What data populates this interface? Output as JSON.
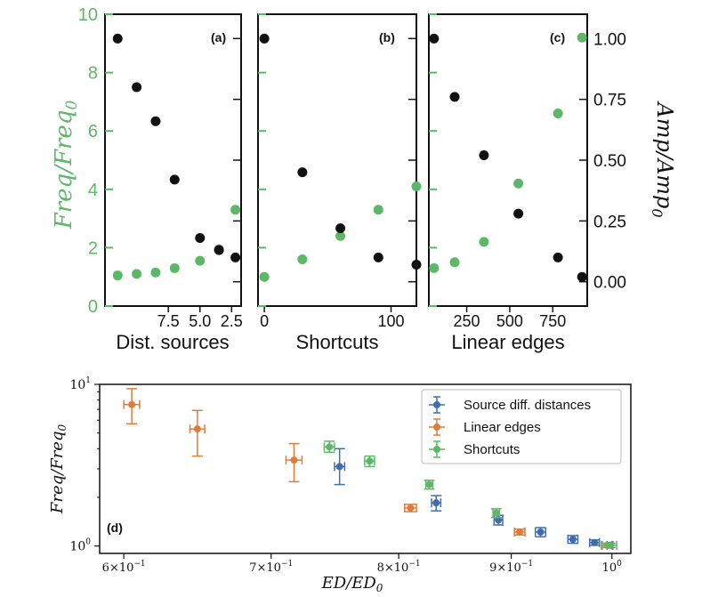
{
  "chart_data": [
    {
      "id": "a",
      "panel_label": "(a)",
      "type": "scatter",
      "xlabel": "Dist. sources",
      "xlim_reversed": [
        12.5,
        1.75
      ],
      "xticks": [
        7.5,
        5.0,
        2.5
      ],
      "xtick_labels": [
        "7.5",
        "5.0",
        "2.5"
      ],
      "ylabel_left": "Freq/Freq0",
      "ylim_left": [
        0,
        10
      ],
      "yticks_left": [
        0,
        2,
        4,
        6,
        8,
        10
      ],
      "ylim_right": [
        -0.1,
        1.1
      ],
      "series": [
        {
          "name": "Freq/Freq0",
          "axis": "left",
          "color": "#5cb867",
          "x": [
            11.5,
            10.0,
            8.5,
            7.0,
            5.0,
            3.5,
            2.2
          ],
          "y": [
            1.05,
            1.1,
            1.15,
            1.3,
            1.55,
            1.95,
            3.3
          ]
        },
        {
          "name": "Amp/Amp0",
          "axis": "right",
          "color": "#111111",
          "x": [
            11.5,
            10.0,
            8.5,
            7.0,
            5.0,
            3.5,
            2.2
          ],
          "y": [
            1.0,
            0.8,
            0.66,
            0.42,
            0.18,
            0.13,
            0.1
          ]
        }
      ]
    },
    {
      "id": "b",
      "panel_label": "(b)",
      "type": "scatter",
      "xlabel": "Shortcuts",
      "xlim": [
        -5,
        120
      ],
      "xticks": [
        0,
        100
      ],
      "xtick_labels": [
        "0",
        "100"
      ],
      "ylim_left": [
        0,
        10
      ],
      "ylim_right": [
        -0.1,
        1.1
      ],
      "series": [
        {
          "name": "Freq/Freq0",
          "axis": "left",
          "color": "#5cb867",
          "x": [
            0,
            30,
            60,
            90,
            120
          ],
          "y": [
            1.0,
            1.6,
            2.4,
            3.3,
            4.1
          ]
        },
        {
          "name": "Amp/Amp0",
          "axis": "right",
          "color": "#111111",
          "x": [
            0,
            30,
            60,
            90,
            120
          ],
          "y": [
            1.0,
            0.45,
            0.22,
            0.1,
            0.07
          ]
        }
      ]
    },
    {
      "id": "c",
      "panel_label": "(c)",
      "type": "scatter",
      "xlabel": "Linear edges",
      "xlim": [
        30,
        950
      ],
      "xticks": [
        250,
        500,
        750
      ],
      "xtick_labels": [
        "250",
        "500",
        "750"
      ],
      "ylabel_right": "Amp/Amp0",
      "ylim_left": [
        0,
        10
      ],
      "ylim_right": [
        -0.1,
        1.1
      ],
      "yticks_right": [
        0.0,
        0.25,
        0.5,
        0.75,
        1.0
      ],
      "ytick_labels_right": [
        "0.00",
        "0.25",
        "0.50",
        "0.75",
        "1.00"
      ],
      "series": [
        {
          "name": "Freq/Freq0",
          "axis": "left",
          "color": "#5cb867",
          "x": [
            60,
            180,
            350,
            550,
            780,
            920
          ],
          "y": [
            1.3,
            1.5,
            2.2,
            4.2,
            6.6,
            9.2
          ]
        },
        {
          "name": "Amp/Amp0",
          "axis": "right",
          "color": "#111111",
          "x": [
            60,
            180,
            350,
            550,
            780,
            920
          ],
          "y": [
            1.0,
            0.76,
            0.52,
            0.28,
            0.1,
            0.02
          ]
        }
      ]
    },
    {
      "id": "d",
      "panel_label": "(d)",
      "type": "scatter",
      "xscale": "log",
      "yscale": "log",
      "xlabel": "ED/ED0",
      "ylabel": "Freq/Freq0",
      "xlim": [
        0.585,
        1.02
      ],
      "ylim": [
        0.9,
        10
      ],
      "xtick_values": [
        0.6,
        0.7,
        0.8,
        0.9,
        1.0
      ],
      "xtick_labels": [
        {
          "base": "6×10",
          "exp": "−1"
        },
        {
          "base": "7×10",
          "exp": "−1"
        },
        {
          "base": "8×10",
          "exp": "−1"
        },
        {
          "base": "9×10",
          "exp": "−1"
        },
        {
          "base": "10",
          "exp": "0"
        }
      ],
      "ytick_values": [
        1,
        10
      ],
      "ytick_labels": [
        {
          "base": "10",
          "exp": "0"
        },
        {
          "base": "10",
          "exp": "1"
        }
      ],
      "legend_position": "top-right",
      "series": [
        {
          "name": "Source diff. distances",
          "color": "#3f6cb0",
          "points": [
            {
              "x": 0.752,
              "y": 3.1,
              "xerr": 0.004,
              "ylo": 2.4,
              "yhi": 4.0
            },
            {
              "x": 0.832,
              "y": 1.85,
              "xerr": 0.004,
              "ylo": 1.65,
              "yhi": 2.05
            },
            {
              "x": 0.888,
              "y": 1.45,
              "xerr": 0.004,
              "ylo": 1.35,
              "yhi": 1.55
            },
            {
              "x": 0.928,
              "y": 1.22,
              "xerr": 0.005,
              "ylo": 1.14,
              "yhi": 1.3
            },
            {
              "x": 0.96,
              "y": 1.1,
              "xerr": 0.005,
              "ylo": 1.04,
              "yhi": 1.16
            },
            {
              "x": 0.982,
              "y": 1.05,
              "xerr": 0.005,
              "ylo": 1.01,
              "yhi": 1.09
            },
            {
              "x": 0.998,
              "y": 1.01,
              "xerr": 0.003,
              "ylo": 0.98,
              "yhi": 1.04
            }
          ]
        },
        {
          "name": "Linear edges",
          "color": "#e07b3c",
          "points": [
            {
              "x": 0.605,
              "y": 7.5,
              "xerr": 0.005,
              "ylo": 5.7,
              "yhi": 9.4
            },
            {
              "x": 0.648,
              "y": 5.3,
              "xerr": 0.005,
              "ylo": 3.6,
              "yhi": 6.9
            },
            {
              "x": 0.717,
              "y": 3.4,
              "xerr": 0.006,
              "ylo": 2.5,
              "yhi": 4.3
            },
            {
              "x": 0.81,
              "y": 1.72,
              "xerr": 0.005,
              "ylo": 1.63,
              "yhi": 1.81
            },
            {
              "x": 0.908,
              "y": 1.22,
              "xerr": 0.005,
              "ylo": 1.17,
              "yhi": 1.27
            },
            {
              "x": 0.995,
              "y": 1.01,
              "xerr": 0.005,
              "ylo": 0.98,
              "yhi": 1.04
            }
          ]
        },
        {
          "name": "Shortcuts",
          "color": "#5cb867",
          "points": [
            {
              "x": 0.744,
              "y": 4.1,
              "xerr": 0.004,
              "ylo": 3.8,
              "yhi": 4.45
            },
            {
              "x": 0.776,
              "y": 3.35,
              "xerr": 0.004,
              "ylo": 3.1,
              "yhi": 3.6
            },
            {
              "x": 0.826,
              "y": 2.4,
              "xerr": 0.003,
              "ylo": 2.25,
              "yhi": 2.55
            },
            {
              "x": 0.886,
              "y": 1.6,
              "xerr": 0.003,
              "ylo": 1.5,
              "yhi": 1.7
            },
            {
              "x": 0.997,
              "y": 1.01,
              "xerr": 0.008,
              "ylo": 0.98,
              "yhi": 1.04
            }
          ]
        }
      ]
    }
  ]
}
